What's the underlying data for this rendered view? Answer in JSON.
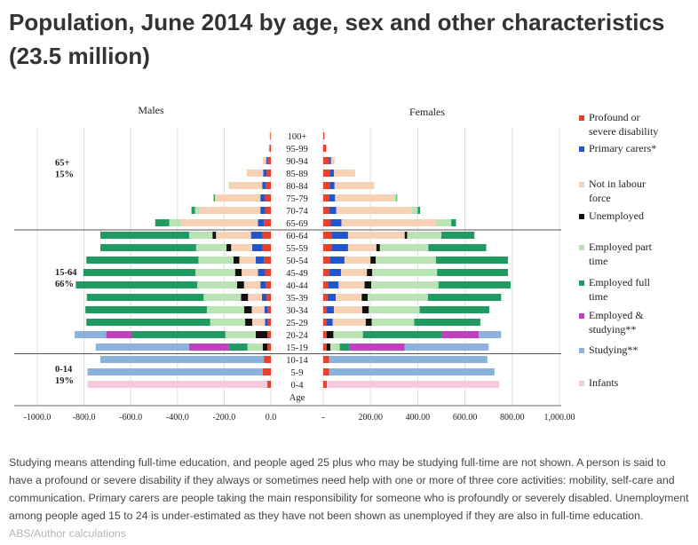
{
  "page": {
    "title": "Population, June 2014 by age, sex and other characteristics (23.5 million)",
    "caption": "Studying means attending full-time education, and people aged 25 plus who may be studying full-time are not shown. A person is said to have a profound or severe disability if they always or sometimes need help with one or more of three core activities: mobility, self-care and communication. Primary carers are people taking the main responsibility for someone who is profoundly or severely disabled. Unemployment among people aged 15 to 24 is under-estimated as they have not been shown as unemployed if they are also in full-time education.",
    "source": "ABS/Author calculations"
  },
  "chart_data": {
    "type": "bar",
    "orientation": "horizontal",
    "stacked": true,
    "title": "",
    "left_panel_label": "Males",
    "right_panel_label": "Females",
    "age_axis_label": "Age",
    "male_ticks": [
      "-1000.0",
      "-800.0",
      "-600.0",
      "-400.0",
      "-200.0",
      "0.0"
    ],
    "female_ticks": [
      "-",
      "200.00",
      "400.00",
      "600.00",
      "800.00",
      "1,000.00"
    ],
    "male_xlim": [
      -1000,
      0
    ],
    "female_xlim": [
      0,
      1000
    ],
    "groups": [
      {
        "label": "65+",
        "pct": "15%"
      },
      {
        "label": "15-64",
        "pct": "66%"
      },
      {
        "label": "0-14",
        "pct": "19%"
      }
    ],
    "categories": [
      "100+",
      "95-99",
      "90-94",
      "85-89",
      "80-84",
      "75-79",
      "70-74",
      "65-69",
      "60-64",
      "55-59",
      "50-54",
      "45-49",
      "40-44",
      "35-39",
      "30-34",
      "25-29",
      "20-24",
      "15-19",
      "10-14",
      "5-9",
      "0-4"
    ],
    "series": [
      {
        "name": "Profound or severe disability",
        "color": "#e8402a",
        "male": [
          3,
          6,
          15,
          18,
          22,
          25,
          25,
          30,
          35,
          35,
          30,
          25,
          20,
          18,
          15,
          15,
          15,
          15,
          30,
          35,
          15
        ],
        "female": [
          5,
          12,
          25,
          30,
          28,
          25,
          25,
          32,
          35,
          35,
          30,
          25,
          20,
          18,
          15,
          15,
          15,
          15,
          25,
          25,
          15
        ]
      },
      {
        "name": "Primary carers*",
        "color": "#2255cc",
        "male": [
          0,
          0,
          5,
          15,
          15,
          20,
          20,
          25,
          50,
          45,
          35,
          30,
          25,
          20,
          12,
          10,
          0,
          0,
          0,
          0,
          0
        ],
        "female": [
          0,
          0,
          8,
          15,
          20,
          25,
          30,
          45,
          70,
          70,
          60,
          50,
          45,
          35,
          30,
          25,
          0,
          0,
          0,
          0,
          0
        ]
      },
      {
        "name": "Not in labour force",
        "color": "#f7d1b6",
        "male": [
          3,
          3,
          15,
          70,
          140,
          190,
          260,
          330,
          150,
          90,
          70,
          70,
          70,
          60,
          55,
          55,
          0,
          0,
          0,
          0,
          0
        ],
        "female": [
          2,
          5,
          15,
          90,
          165,
          250,
          320,
          400,
          240,
          120,
          110,
          110,
          110,
          110,
          120,
          140,
          0,
          0,
          0,
          0,
          0
        ]
      },
      {
        "name": "Unemployed",
        "color": "#111111",
        "male": [
          0,
          0,
          0,
          0,
          0,
          0,
          0,
          0,
          15,
          20,
          25,
          28,
          30,
          30,
          32,
          30,
          50,
          20,
          0,
          0,
          0
        ],
        "female": [
          0,
          0,
          0,
          0,
          0,
          0,
          0,
          0,
          10,
          15,
          22,
          22,
          28,
          25,
          28,
          25,
          28,
          15,
          0,
          0,
          0
        ]
      },
      {
        "name": "Employed part time",
        "color": "#b9e3b2",
        "male": [
          0,
          0,
          0,
          0,
          3,
          5,
          20,
          50,
          100,
          130,
          150,
          170,
          170,
          160,
          160,
          150,
          130,
          65,
          0,
          0,
          0
        ],
        "female": [
          0,
          0,
          0,
          0,
          3,
          10,
          25,
          65,
          145,
          205,
          255,
          275,
          285,
          255,
          215,
          180,
          125,
          40,
          0,
          0,
          0
        ]
      },
      {
        "name": "Employed full time",
        "color": "#1f9a60",
        "male": [
          0,
          0,
          0,
          0,
          0,
          5,
          15,
          60,
          380,
          410,
          480,
          480,
          520,
          500,
          520,
          530,
          400,
          80,
          0,
          0,
          0
        ],
        "female": [
          0,
          0,
          0,
          0,
          0,
          3,
          10,
          20,
          140,
          245,
          305,
          300,
          305,
          310,
          295,
          280,
          335,
          40,
          0,
          0,
          0
        ]
      },
      {
        "name": "Employed & studying**",
        "color": "#c040c0",
        "male": [
          0,
          0,
          0,
          0,
          0,
          0,
          0,
          0,
          0,
          0,
          0,
          0,
          0,
          0,
          0,
          0,
          110,
          170,
          0,
          0,
          0
        ],
        "female": [
          0,
          0,
          0,
          0,
          0,
          0,
          0,
          0,
          0,
          0,
          0,
          0,
          0,
          0,
          0,
          0,
          155,
          235,
          0,
          0,
          0
        ]
      },
      {
        "name": "Studying**",
        "color": "#8ab2dd",
        "male": [
          0,
          0,
          0,
          0,
          0,
          0,
          0,
          0,
          0,
          0,
          0,
          0,
          0,
          0,
          0,
          0,
          135,
          400,
          700,
          750,
          0
        ],
        "female": [
          0,
          0,
          0,
          0,
          0,
          0,
          0,
          0,
          0,
          0,
          0,
          0,
          0,
          0,
          0,
          0,
          95,
          355,
          670,
          700,
          0
        ]
      },
      {
        "name": "Infants",
        "color": "#f6c9df",
        "male": [
          0,
          0,
          0,
          0,
          0,
          0,
          0,
          0,
          0,
          0,
          0,
          0,
          0,
          0,
          0,
          0,
          0,
          0,
          0,
          0,
          770
        ],
        "female": [
          0,
          0,
          0,
          0,
          0,
          0,
          0,
          0,
          0,
          0,
          0,
          0,
          0,
          0,
          0,
          0,
          0,
          0,
          0,
          0,
          730
        ]
      }
    ]
  }
}
